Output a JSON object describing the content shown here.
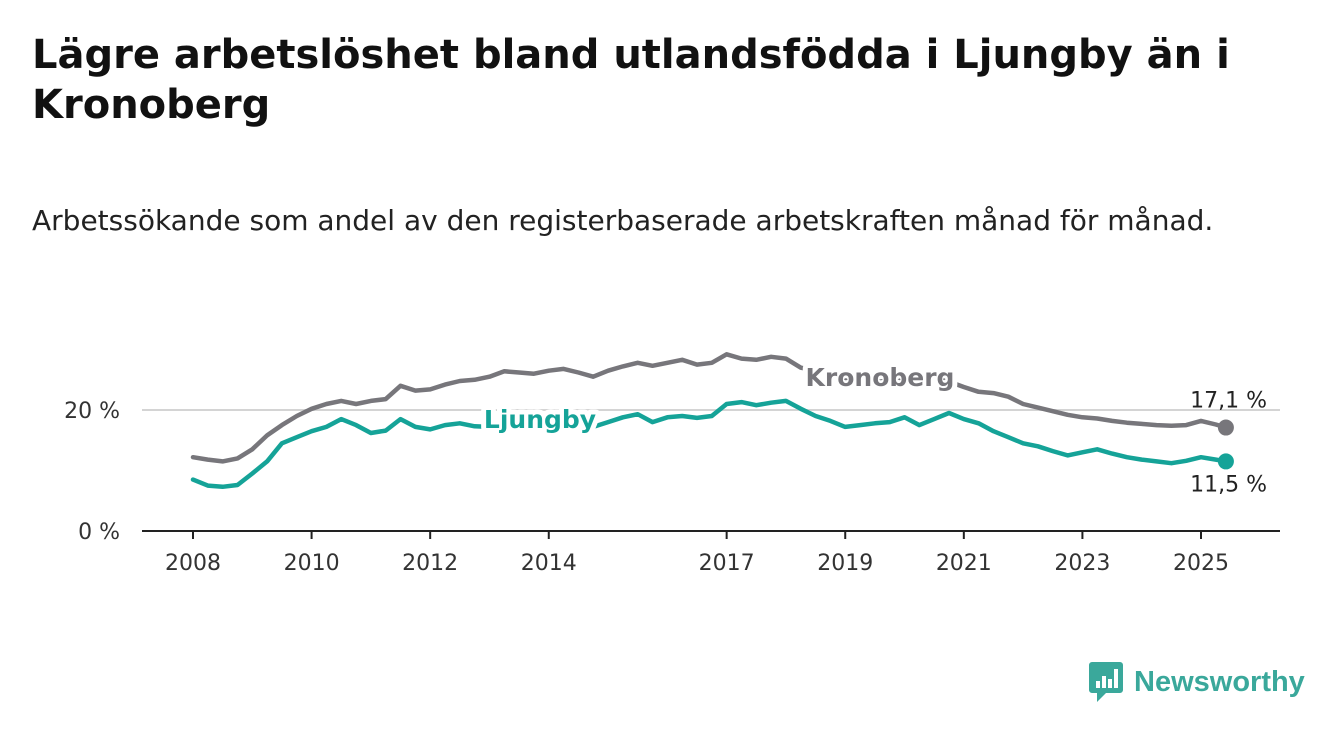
{
  "title": "Lägre arbetslöshet bland utlandsfödda i Ljungby än i Kronoberg",
  "subtitle": "Arbetssökande som andel av den registerbaserade arbetskraften månad för månad.",
  "brand": {
    "name": "Newsworthy",
    "color": "#3aa89b"
  },
  "chart_data": {
    "type": "line",
    "x_unit": "year",
    "xlim": [
      2008,
      2025.5
    ],
    "ylim": [
      0,
      30
    ],
    "grid": "horizontal at 20",
    "legend": "inline labels",
    "y_ticks": [
      {
        "value": 0,
        "label": "0 %"
      },
      {
        "value": 20,
        "label": "20 %"
      }
    ],
    "x_ticks": [
      {
        "value": 2008,
        "label": "2008"
      },
      {
        "value": 2010,
        "label": "2010"
      },
      {
        "value": 2012,
        "label": "2012"
      },
      {
        "value": 2014,
        "label": "2014"
      },
      {
        "value": 2017,
        "label": "2017"
      },
      {
        "value": 2019,
        "label": "2019"
      },
      {
        "value": 2021,
        "label": "2021"
      },
      {
        "value": 2023,
        "label": "2023"
      },
      {
        "value": 2025,
        "label": "2025"
      }
    ],
    "series": [
      {
        "name": "Kronoberg",
        "color": "#77767b",
        "end_label": "17,1 %",
        "points": [
          [
            2008.0,
            12.2
          ],
          [
            2008.25,
            11.8
          ],
          [
            2008.5,
            11.5
          ],
          [
            2008.75,
            12.0
          ],
          [
            2009.0,
            13.5
          ],
          [
            2009.25,
            15.8
          ],
          [
            2009.5,
            17.5
          ],
          [
            2009.75,
            19.0
          ],
          [
            2010.0,
            20.2
          ],
          [
            2010.25,
            21.0
          ],
          [
            2010.5,
            21.5
          ],
          [
            2010.75,
            21.0
          ],
          [
            2011.0,
            21.5
          ],
          [
            2011.25,
            21.8
          ],
          [
            2011.5,
            24.0
          ],
          [
            2011.75,
            23.2
          ],
          [
            2012.0,
            23.4
          ],
          [
            2012.25,
            24.2
          ],
          [
            2012.5,
            24.8
          ],
          [
            2012.75,
            25.0
          ],
          [
            2013.0,
            25.5
          ],
          [
            2013.25,
            26.4
          ],
          [
            2013.5,
            26.2
          ],
          [
            2013.75,
            26.0
          ],
          [
            2014.0,
            26.5
          ],
          [
            2014.25,
            26.8
          ],
          [
            2014.5,
            26.2
          ],
          [
            2014.75,
            25.5
          ],
          [
            2015.0,
            26.5
          ],
          [
            2015.25,
            27.2
          ],
          [
            2015.5,
            27.8
          ],
          [
            2015.75,
            27.3
          ],
          [
            2016.0,
            27.8
          ],
          [
            2016.25,
            28.3
          ],
          [
            2016.5,
            27.5
          ],
          [
            2016.75,
            27.8
          ],
          [
            2017.0,
            29.2
          ],
          [
            2017.25,
            28.5
          ],
          [
            2017.5,
            28.3
          ],
          [
            2017.75,
            28.8
          ],
          [
            2018.0,
            28.5
          ],
          [
            2018.25,
            27.0
          ],
          [
            2018.5,
            26.5
          ],
          [
            2018.75,
            26.0
          ],
          [
            2019.0,
            25.2
          ],
          [
            2019.25,
            24.8
          ],
          [
            2019.5,
            24.6
          ],
          [
            2019.75,
            24.9
          ],
          [
            2020.0,
            25.3
          ],
          [
            2020.25,
            25.7
          ],
          [
            2020.5,
            25.2
          ],
          [
            2020.75,
            24.7
          ],
          [
            2021.0,
            23.8
          ],
          [
            2021.25,
            23.0
          ],
          [
            2021.5,
            22.8
          ],
          [
            2021.75,
            22.2
          ],
          [
            2022.0,
            21.0
          ],
          [
            2022.25,
            20.4
          ],
          [
            2022.5,
            19.8
          ],
          [
            2022.75,
            19.2
          ],
          [
            2023.0,
            18.8
          ],
          [
            2023.25,
            18.6
          ],
          [
            2023.5,
            18.2
          ],
          [
            2023.75,
            17.9
          ],
          [
            2024.0,
            17.7
          ],
          [
            2024.25,
            17.5
          ],
          [
            2024.5,
            17.4
          ],
          [
            2024.75,
            17.5
          ],
          [
            2025.0,
            18.2
          ],
          [
            2025.25,
            17.6
          ],
          [
            2025.42,
            17.1
          ]
        ]
      },
      {
        "name": "Ljungby",
        "color": "#15a398",
        "end_label": "11,5 %",
        "points": [
          [
            2008.0,
            8.5
          ],
          [
            2008.25,
            7.5
          ],
          [
            2008.5,
            7.3
          ],
          [
            2008.75,
            7.6
          ],
          [
            2009.0,
            9.5
          ],
          [
            2009.25,
            11.5
          ],
          [
            2009.5,
            14.5
          ],
          [
            2009.75,
            15.5
          ],
          [
            2010.0,
            16.5
          ],
          [
            2010.25,
            17.2
          ],
          [
            2010.5,
            18.5
          ],
          [
            2010.75,
            17.5
          ],
          [
            2011.0,
            16.2
          ],
          [
            2011.25,
            16.6
          ],
          [
            2011.5,
            18.5
          ],
          [
            2011.75,
            17.2
          ],
          [
            2012.0,
            16.8
          ],
          [
            2012.25,
            17.5
          ],
          [
            2012.5,
            17.8
          ],
          [
            2012.75,
            17.3
          ],
          [
            2013.0,
            17.2
          ],
          [
            2013.25,
            17.6
          ],
          [
            2013.5,
            18.0
          ],
          [
            2013.75,
            17.8
          ],
          [
            2014.0,
            17.5
          ],
          [
            2014.25,
            17.2
          ],
          [
            2014.5,
            16.8
          ],
          [
            2014.75,
            17.2
          ],
          [
            2015.0,
            18.0
          ],
          [
            2015.25,
            18.8
          ],
          [
            2015.5,
            19.3
          ],
          [
            2015.75,
            18.0
          ],
          [
            2016.0,
            18.8
          ],
          [
            2016.25,
            19.0
          ],
          [
            2016.5,
            18.7
          ],
          [
            2016.75,
            19.0
          ],
          [
            2017.0,
            21.0
          ],
          [
            2017.25,
            21.3
          ],
          [
            2017.5,
            20.8
          ],
          [
            2017.75,
            21.2
          ],
          [
            2018.0,
            21.5
          ],
          [
            2018.25,
            20.2
          ],
          [
            2018.5,
            19.0
          ],
          [
            2018.75,
            18.2
          ],
          [
            2019.0,
            17.2
          ],
          [
            2019.25,
            17.5
          ],
          [
            2019.5,
            17.8
          ],
          [
            2019.75,
            18.0
          ],
          [
            2020.0,
            18.8
          ],
          [
            2020.25,
            17.5
          ],
          [
            2020.5,
            18.5
          ],
          [
            2020.75,
            19.5
          ],
          [
            2021.0,
            18.5
          ],
          [
            2021.25,
            17.8
          ],
          [
            2021.5,
            16.5
          ],
          [
            2021.75,
            15.5
          ],
          [
            2022.0,
            14.5
          ],
          [
            2022.25,
            14.0
          ],
          [
            2022.5,
            13.2
          ],
          [
            2022.75,
            12.5
          ],
          [
            2023.0,
            13.0
          ],
          [
            2023.25,
            13.5
          ],
          [
            2023.5,
            12.8
          ],
          [
            2023.75,
            12.2
          ],
          [
            2024.0,
            11.8
          ],
          [
            2024.25,
            11.5
          ],
          [
            2024.5,
            11.2
          ],
          [
            2024.75,
            11.6
          ],
          [
            2025.0,
            12.2
          ],
          [
            2025.25,
            11.8
          ],
          [
            2025.42,
            11.5
          ]
        ]
      }
    ]
  }
}
